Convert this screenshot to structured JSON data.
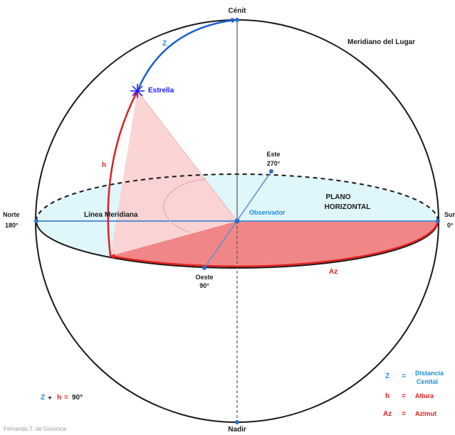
{
  "labels": {
    "cenit": "Cénit",
    "nadir": "Nadir",
    "meridiano": "Meridiano del Lugar",
    "estrella": "Estrella",
    "este_name": "Este",
    "este_deg": "270°",
    "norte_name": "Norte",
    "norte_deg": "180°",
    "sur_name": "Sur",
    "sur_deg": "0°",
    "oeste_name": "Oeste",
    "oeste_deg": "90°",
    "linea_meridiana": "Linea Meridiana",
    "observador": "Observador",
    "plano_1": "PLANO",
    "plano_2": "HORIZONTAL",
    "z_arc": "Z",
    "h_arc": "h",
    "az_arc": "Az"
  },
  "formula": {
    "z": "Z",
    "plus": "+",
    "h": "h",
    "eq": "=",
    "value": "90°"
  },
  "legend": [
    {
      "symbol": "Z",
      "eq": "=",
      "text_1": "Distancia",
      "text_2": "Cenital",
      "color": "#1a8fd8"
    },
    {
      "symbol": "h",
      "eq": "=",
      "text_1": "Altura",
      "text_2": "",
      "color": "#e02020"
    },
    {
      "symbol": "Az",
      "eq": "=",
      "text_1": "Azimut",
      "text_2": "",
      "color": "#e02020"
    }
  ],
  "credit": "Fernando T. de Gorocica",
  "colors": {
    "outline": "#1a1a1a",
    "red": "#e02020",
    "blue_text": "#1a1aff",
    "cyan_text": "#1a8fd8",
    "plane_fill": "#dff6fb",
    "az_fill": "#f27a7a",
    "triangle_fill": "#fbd2d2",
    "node": "#2a6fc9"
  }
}
